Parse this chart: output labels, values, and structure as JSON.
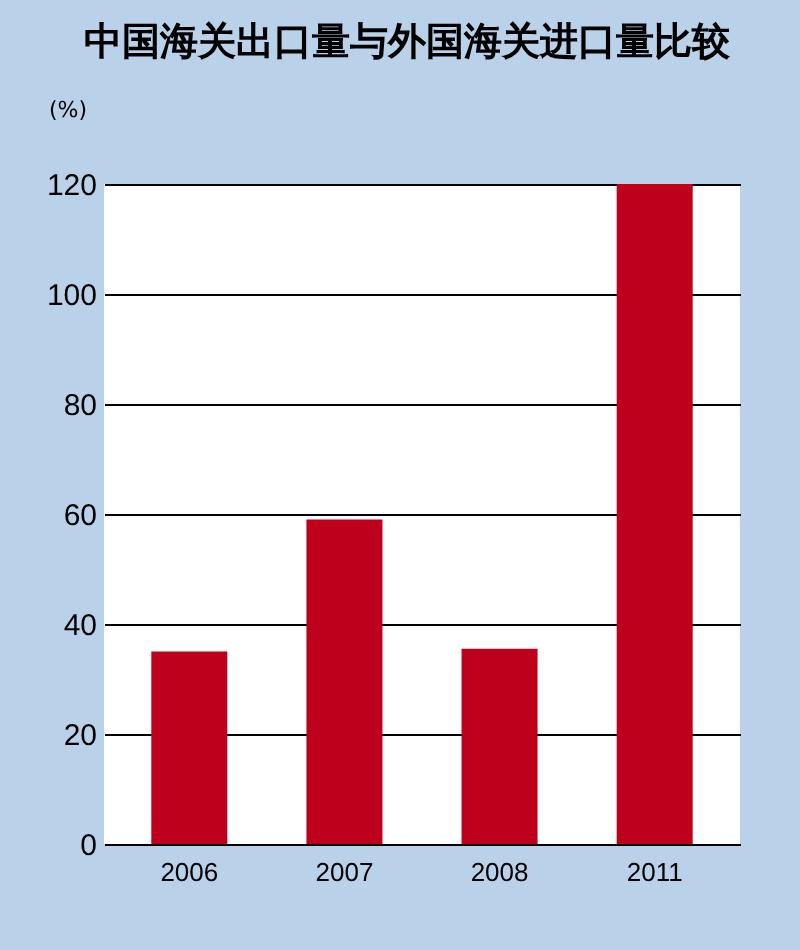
{
  "chart_data": {
    "type": "bar",
    "title": "中国海关出口量与外国海关进口量比较",
    "ylabel": "(%)",
    "categories": [
      "2006",
      "2007",
      "2008",
      "2011"
    ],
    "values": [
      35,
      59,
      35.5,
      120
    ],
    "color": "#be001c",
    "ylim": [
      0,
      120
    ],
    "yticks": [
      0,
      20,
      40,
      60,
      80,
      100,
      120
    ],
    "grid": "y"
  }
}
